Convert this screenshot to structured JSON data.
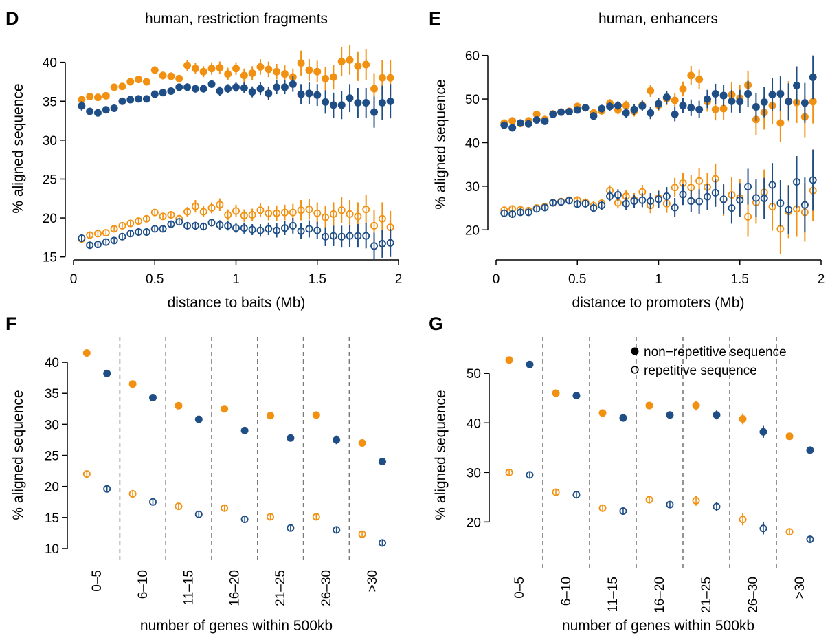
{
  "colors": {
    "orange": "#F29111",
    "blue": "#1F4E86",
    "divider": "#7a7a7a"
  },
  "legend": {
    "non_repetitive": "non−repetitive sequence",
    "repetitive": "repetitive sequence"
  },
  "chart_data": [
    {
      "panel": "D",
      "type": "scatter",
      "title": "human, restriction fragments",
      "xlabel": "distance to baits (Mb)",
      "ylabel": "% aligned sequence",
      "xlim": [
        0,
        2
      ],
      "ylim": [
        14,
        42
      ],
      "xticks": [
        "0",
        "0.5",
        "1",
        "1.5",
        "2"
      ],
      "yticks": [
        "15",
        "20",
        "25",
        "30",
        "35",
        "40"
      ],
      "x": [
        0.05,
        0.1,
        0.15,
        0.2,
        0.25,
        0.3,
        0.35,
        0.4,
        0.45,
        0.5,
        0.55,
        0.6,
        0.65,
        0.7,
        0.75,
        0.8,
        0.85,
        0.9,
        0.95,
        1.0,
        1.05,
        1.1,
        1.15,
        1.2,
        1.25,
        1.3,
        1.35,
        1.4,
        1.45,
        1.5,
        1.55,
        1.6,
        1.65,
        1.7,
        1.75,
        1.8,
        1.85,
        1.9,
        1.95
      ],
      "series": [
        {
          "color_key": "orange",
          "filled": true,
          "values": [
            35.2,
            35.6,
            35.5,
            35.7,
            36.8,
            36.9,
            37.5,
            37.8,
            37.5,
            39.0,
            38.3,
            38.2,
            37.9,
            39.6,
            39.2,
            38.8,
            39.2,
            39.3,
            38.5,
            39.2,
            38.3,
            38.6,
            39.4,
            39.1,
            38.8,
            38.5,
            38.1,
            39.9,
            39.0,
            38.8,
            37.9,
            38.1,
            40.1,
            40.3,
            39.5,
            39.7,
            36.6,
            38.0,
            38.0
          ],
          "errors": [
            0.3,
            0.3,
            0.3,
            0.3,
            0.4,
            0.4,
            0.4,
            0.4,
            0.5,
            0.5,
            0.5,
            0.5,
            0.5,
            0.7,
            0.7,
            0.7,
            0.8,
            0.8,
            0.8,
            0.8,
            0.9,
            0.9,
            1.0,
            1.0,
            1.0,
            1.1,
            1.1,
            1.6,
            1.4,
            1.4,
            1.5,
            1.6,
            1.9,
            1.9,
            1.9,
            2.0,
            2.0,
            2.3,
            2.3
          ]
        },
        {
          "color_key": "blue",
          "filled": true,
          "values": [
            34.4,
            33.7,
            33.5,
            33.9,
            34.1,
            35.0,
            35.2,
            35.3,
            35.3,
            35.9,
            36.1,
            36.3,
            36.8,
            36.8,
            36.6,
            36.6,
            37.2,
            36.3,
            36.6,
            36.8,
            36.7,
            36.2,
            36.6,
            36.0,
            36.8,
            36.8,
            37.2,
            35.9,
            36.0,
            35.8,
            34.9,
            34.5,
            34.5,
            35.4,
            34.8,
            34.8,
            33.6,
            34.8,
            35.0
          ],
          "errors": [
            0.6,
            0.3,
            0.3,
            0.3,
            0.3,
            0.3,
            0.3,
            0.3,
            0.3,
            0.3,
            0.4,
            0.4,
            0.4,
            0.5,
            0.5,
            0.5,
            0.5,
            0.6,
            0.6,
            0.6,
            0.7,
            0.7,
            0.8,
            0.8,
            0.9,
            0.9,
            1.0,
            1.3,
            1.4,
            1.4,
            1.5,
            1.6,
            1.8,
            1.8,
            1.9,
            1.9,
            2.0,
            2.2,
            2.2
          ]
        },
        {
          "color_key": "orange",
          "filled": false,
          "values": [
            17.3,
            17.8,
            18.0,
            18.1,
            18.6,
            19.0,
            19.3,
            19.6,
            19.9,
            20.7,
            20.2,
            20.4,
            19.9,
            20.8,
            21.5,
            20.8,
            21.3,
            21.7,
            20.4,
            20.9,
            20.3,
            20.4,
            21.0,
            20.6,
            20.6,
            20.7,
            20.7,
            21.0,
            21.1,
            20.6,
            20.1,
            20.5,
            21.0,
            20.5,
            20.2,
            21.1,
            19.0,
            19.9,
            18.8
          ],
          "errors": [
            0.3,
            0.3,
            0.3,
            0.3,
            0.3,
            0.3,
            0.3,
            0.4,
            0.4,
            0.4,
            0.4,
            0.4,
            0.5,
            0.6,
            0.8,
            0.7,
            0.7,
            0.8,
            0.7,
            0.8,
            0.8,
            0.8,
            0.9,
            0.9,
            1.0,
            1.0,
            1.1,
            1.3,
            1.3,
            1.4,
            1.4,
            1.5,
            1.7,
            1.8,
            1.8,
            1.9,
            2.0,
            2.1,
            2.1
          ]
        },
        {
          "color_key": "blue",
          "filled": false,
          "values": [
            17.4,
            16.5,
            16.6,
            16.9,
            17.1,
            17.6,
            18.0,
            18.2,
            18.2,
            18.6,
            18.6,
            19.2,
            19.5,
            19.0,
            19.0,
            18.9,
            19.4,
            19.1,
            19.0,
            18.7,
            18.7,
            18.5,
            18.4,
            18.6,
            18.4,
            18.7,
            19.0,
            18.3,
            18.6,
            18.4,
            17.6,
            17.7,
            17.6,
            17.7,
            17.7,
            17.7,
            16.4,
            16.7,
            16.8
          ],
          "errors": [
            0.5,
            0.3,
            0.3,
            0.3,
            0.3,
            0.3,
            0.3,
            0.3,
            0.3,
            0.3,
            0.4,
            0.4,
            0.4,
            0.4,
            0.5,
            0.5,
            0.5,
            0.6,
            0.6,
            0.6,
            0.7,
            0.7,
            0.8,
            0.8,
            0.9,
            0.9,
            1.0,
            1.0,
            1.1,
            1.1,
            1.2,
            1.3,
            1.4,
            1.4,
            1.5,
            1.6,
            1.7,
            1.8,
            1.8
          ]
        }
      ]
    },
    {
      "panel": "E",
      "type": "scatter",
      "title": "human, enhancers",
      "xlabel": "distance to promoters (Mb)",
      "ylabel": "% aligned sequence",
      "xlim": [
        0,
        2
      ],
      "ylim": [
        12,
        62
      ],
      "xticks": [
        "0",
        "0.5",
        "1",
        "1.5",
        "2"
      ],
      "yticks": [
        "20",
        "30",
        "40",
        "50",
        "60"
      ],
      "x": [
        0.05,
        0.1,
        0.15,
        0.2,
        0.25,
        0.3,
        0.35,
        0.4,
        0.45,
        0.5,
        0.55,
        0.6,
        0.65,
        0.7,
        0.75,
        0.8,
        0.85,
        0.9,
        0.95,
        1.0,
        1.05,
        1.1,
        1.15,
        1.2,
        1.25,
        1.3,
        1.35,
        1.4,
        1.45,
        1.5,
        1.55,
        1.6,
        1.65,
        1.7,
        1.75,
        1.8,
        1.85,
        1.9,
        1.95
      ],
      "series": [
        {
          "color_key": "orange",
          "filled": true,
          "values": [
            44.5,
            45.0,
            44.4,
            45.0,
            46.5,
            45.3,
            46.6,
            47.0,
            47.2,
            48.3,
            48.0,
            46.8,
            47.3,
            49.0,
            47.5,
            48.5,
            47.2,
            48.6,
            51.9,
            48.6,
            50.1,
            49.7,
            52.3,
            55.4,
            54.5,
            49.4,
            47.6,
            47.8,
            51.0,
            50.2,
            53.2,
            45.3,
            46.9,
            48.5,
            44.5,
            49.5,
            49.2,
            45.9,
            49.4
          ],
          "errors": [
            0.5,
            0.5,
            0.5,
            0.5,
            0.6,
            0.6,
            0.6,
            0.7,
            0.7,
            0.8,
            0.8,
            0.9,
            0.9,
            1.0,
            1.0,
            1.1,
            1.2,
            1.2,
            1.4,
            1.4,
            1.5,
            1.6,
            1.7,
            2.2,
            2.2,
            2.3,
            2.5,
            2.6,
            2.9,
            3.0,
            3.3,
            3.5,
            3.9,
            4.2,
            4.3,
            4.6,
            4.7,
            4.8,
            5.0
          ]
        },
        {
          "color_key": "blue",
          "filled": true,
          "values": [
            44.0,
            43.4,
            44.5,
            44.3,
            45.2,
            44.9,
            46.5,
            47.0,
            47.1,
            47.5,
            48.0,
            46.1,
            47.8,
            48.3,
            48.5,
            46.8,
            47.6,
            48.4,
            46.8,
            48.9,
            50.4,
            46.5,
            48.5,
            48.0,
            47.6,
            50.0,
            51.2,
            50.8,
            49.5,
            49.4,
            51.2,
            48.2,
            49.3,
            51.0,
            51.2,
            49.4,
            53.1,
            49.1,
            55.0
          ],
          "errors": [
            0.5,
            0.5,
            0.5,
            0.5,
            0.6,
            0.6,
            0.6,
            0.7,
            0.7,
            0.8,
            0.8,
            0.9,
            0.9,
            1.0,
            1.0,
            1.1,
            1.2,
            1.2,
            1.4,
            1.4,
            1.5,
            1.6,
            1.7,
            1.9,
            2.0,
            2.1,
            2.3,
            2.4,
            2.6,
            2.7,
            3.0,
            3.2,
            3.5,
            3.8,
            4.0,
            4.2,
            4.4,
            4.6,
            5.0
          ]
        },
        {
          "color_key": "orange",
          "filled": false,
          "values": [
            24.5,
            24.8,
            24.6,
            24.4,
            25.0,
            25.3,
            26.2,
            26.5,
            26.8,
            26.8,
            26.3,
            25.5,
            26.1,
            29.0,
            26.2,
            27.7,
            26.9,
            28.7,
            25.6,
            27.3,
            26.0,
            29.7,
            30.7,
            29.7,
            31.2,
            29.8,
            31.7,
            26.9,
            28.0,
            27.3,
            23.0,
            26.3,
            28.6,
            25.3,
            20.2,
            24.2,
            24.8,
            24.0,
            29.0
          ],
          "errors": [
            0.6,
            0.6,
            0.6,
            0.6,
            0.7,
            0.7,
            0.7,
            0.8,
            0.8,
            0.9,
            0.9,
            1.0,
            1.0,
            1.2,
            1.3,
            1.4,
            1.5,
            1.6,
            1.8,
            1.9,
            2.1,
            2.2,
            2.4,
            2.8,
            3.0,
            3.2,
            3.5,
            3.7,
            4.0,
            4.3,
            4.6,
            4.9,
            5.2,
            5.5,
            5.8,
            6.1,
            6.4,
            6.7,
            7.0
          ]
        },
        {
          "color_key": "blue",
          "filled": false,
          "values": [
            23.8,
            23.6,
            24.0,
            24.0,
            24.8,
            25.1,
            26.2,
            26.4,
            26.7,
            25.9,
            26.0,
            25.0,
            25.6,
            27.7,
            28.0,
            26.0,
            26.6,
            26.8,
            26.6,
            27.0,
            27.7,
            25.1,
            28.1,
            26.6,
            26.5,
            27.6,
            28.5,
            27.0,
            25.0,
            26.8,
            29.9,
            27.3,
            27.2,
            30.3,
            26.1,
            24.6,
            31.0,
            25.7,
            31.4
          ],
          "errors": [
            0.6,
            0.6,
            0.6,
            0.6,
            0.7,
            0.7,
            0.7,
            0.8,
            0.8,
            0.9,
            0.9,
            1.0,
            1.0,
            1.2,
            1.3,
            1.4,
            1.5,
            1.6,
            1.8,
            1.9,
            2.1,
            2.2,
            2.4,
            2.6,
            2.8,
            3.0,
            3.2,
            3.4,
            3.6,
            3.9,
            4.1,
            4.4,
            4.7,
            5.0,
            5.3,
            5.6,
            5.9,
            6.3,
            7.0
          ]
        }
      ]
    },
    {
      "panel": "F",
      "type": "scatter",
      "xlabel": "number of genes within 500kb",
      "ylabel": "% aligned sequence",
      "ylim": [
        9,
        43
      ],
      "categories": [
        "0–5",
        "6–10",
        "11–15",
        "16–20",
        "21–25",
        "26–30",
        ">30"
      ],
      "yticks": [
        "10",
        "15",
        "20",
        "25",
        "30",
        "35",
        "40"
      ],
      "series": [
        {
          "color_key": "orange",
          "filled": true,
          "offset": -0.11,
          "values": [
            41.5,
            36.5,
            33.0,
            32.5,
            31.4,
            31.5,
            27.0
          ],
          "errors": [
            0.3,
            0.3,
            0.3,
            0.3,
            0.3,
            0.5,
            0.4
          ]
        },
        {
          "color_key": "blue",
          "filled": true,
          "offset": 0.11,
          "values": [
            38.2,
            34.3,
            30.8,
            29.0,
            27.8,
            27.5,
            24.0
          ],
          "errors": [
            0.3,
            0.3,
            0.3,
            0.3,
            0.3,
            0.7,
            0.4
          ]
        },
        {
          "color_key": "orange",
          "filled": false,
          "offset": -0.11,
          "values": [
            22.0,
            18.8,
            16.8,
            16.5,
            15.1,
            15.1,
            12.3
          ],
          "errors": [
            0.3,
            0.3,
            0.3,
            0.3,
            0.3,
            0.3,
            0.4
          ]
        },
        {
          "color_key": "blue",
          "filled": false,
          "offset": 0.11,
          "values": [
            19.6,
            17.5,
            15.5,
            14.7,
            13.3,
            13.0,
            10.9
          ],
          "errors": [
            0.3,
            0.3,
            0.3,
            0.3,
            0.3,
            0.3,
            0.3
          ]
        }
      ]
    },
    {
      "panel": "G",
      "type": "scatter",
      "xlabel": "number of genes within 500kb",
      "ylabel": "% aligned sequence",
      "ylim": [
        12,
        56
      ],
      "categories": [
        "0–5",
        "6–10",
        "11–15",
        "16–20",
        "21–25",
        "26–30",
        ">30"
      ],
      "yticks": [
        "20",
        "30",
        "40",
        "50"
      ],
      "legend_position": "top-right",
      "series": [
        {
          "color_key": "orange",
          "filled": true,
          "offset": -0.11,
          "values": [
            52.7,
            46.0,
            42.0,
            43.5,
            43.5,
            40.8,
            37.3
          ],
          "errors": [
            0.3,
            0.3,
            0.4,
            0.4,
            1.0,
            1.1,
            0.5
          ]
        },
        {
          "color_key": "blue",
          "filled": true,
          "offset": 0.11,
          "values": [
            51.8,
            45.5,
            41.0,
            41.6,
            41.6,
            38.2,
            34.5
          ],
          "errors": [
            0.3,
            0.3,
            0.4,
            0.4,
            0.9,
            1.2,
            0.5
          ]
        },
        {
          "color_key": "orange",
          "filled": false,
          "offset": -0.11,
          "values": [
            30.0,
            26.0,
            22.8,
            24.5,
            24.3,
            20.5,
            18.0
          ],
          "errors": [
            0.3,
            0.3,
            0.4,
            0.5,
            1.0,
            1.2,
            0.6
          ]
        },
        {
          "color_key": "blue",
          "filled": false,
          "offset": 0.11,
          "values": [
            29.5,
            25.5,
            22.2,
            23.5,
            23.1,
            18.7,
            16.5
          ],
          "errors": [
            0.3,
            0.3,
            0.4,
            0.5,
            0.9,
            1.2,
            0.5
          ]
        }
      ]
    }
  ]
}
